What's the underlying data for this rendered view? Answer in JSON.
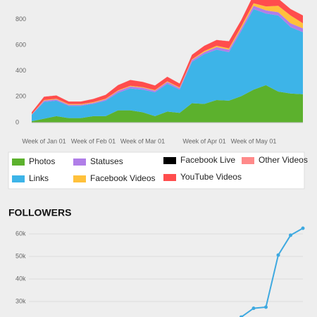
{
  "chart_data": [
    {
      "type": "stacked_area",
      "categories": [
        null,
        "Week of Jan 01",
        null,
        null,
        null,
        "Week of Feb 01",
        null,
        null,
        null,
        "Week of Mar 01",
        null,
        null,
        null,
        null,
        "Week of Apr 01",
        null,
        null,
        null,
        "Week of May 01",
        null,
        null,
        null,
        null
      ],
      "series": [
        {
          "name": "Photos",
          "color": "#5cb12d",
          "values": [
            10,
            30,
            50,
            35,
            35,
            50,
            50,
            95,
            95,
            80,
            50,
            85,
            75,
            150,
            145,
            175,
            170,
            205,
            255,
            290,
            240,
            225,
            220
          ]
        },
        {
          "name": "Links",
          "color": "#3db4e8",
          "values": [
            50,
            130,
            120,
            95,
            95,
            95,
            120,
            135,
            170,
            175,
            185,
            215,
            180,
            320,
            385,
            390,
            375,
            505,
            625,
            555,
            590,
            515,
            480
          ]
        },
        {
          "name": "Statuses",
          "color": "#b07ee8",
          "values": [
            3,
            10,
            10,
            8,
            8,
            8,
            10,
            15,
            15,
            15,
            12,
            15,
            12,
            15,
            15,
            20,
            20,
            20,
            25,
            25,
            25,
            30,
            30
          ]
        },
        {
          "name": "Facebook Videos",
          "color": "#ffc13b",
          "values": [
            2,
            5,
            5,
            5,
            5,
            5,
            5,
            5,
            5,
            5,
            5,
            5,
            5,
            5,
            10,
            10,
            10,
            15,
            20,
            30,
            50,
            60,
            40
          ]
        },
        {
          "name": "Facebook Live",
          "color": "#000000",
          "values": [
            0,
            0,
            0,
            0,
            0,
            0,
            0,
            0,
            0,
            0,
            0,
            0,
            0,
            0,
            0,
            0,
            0,
            0,
            0,
            0,
            0,
            0,
            0
          ]
        },
        {
          "name": "YouTube Videos",
          "color": "#ff4d4d",
          "values": [
            15,
            25,
            25,
            20,
            20,
            25,
            30,
            40,
            45,
            40,
            35,
            35,
            30,
            35,
            40,
            45,
            55,
            50,
            65,
            60,
            55,
            50,
            60
          ]
        },
        {
          "name": "Other Videos",
          "color": "#ff8a8a",
          "values": [
            1,
            1,
            1,
            1,
            1,
            1,
            1,
            1,
            1,
            1,
            1,
            1,
            1,
            1,
            1,
            1,
            1,
            1,
            1,
            1,
            1,
            1,
            1
          ]
        }
      ],
      "ylim": [
        0,
        950
      ],
      "yticks": [
        0,
        200,
        400,
        600,
        800
      ]
    },
    {
      "type": "line",
      "title": "FOLLOWERS",
      "series": [
        {
          "name": "Followers",
          "color": "#3ea9e0",
          "values": [
            null,
            null,
            null,
            null,
            null,
            null,
            null,
            null,
            null,
            null,
            null,
            null,
            null,
            null,
            null,
            null,
            null,
            23100,
            27000,
            27500,
            50600,
            59400,
            62500
          ]
        }
      ],
      "ylim": [
        20000,
        65000
      ],
      "yticks": [
        {
          "value": 30000,
          "label": "30k"
        },
        {
          "value": 40000,
          "label": "40k"
        },
        {
          "value": 50000,
          "label": "50k"
        },
        {
          "value": 60000,
          "label": "60k"
        }
      ],
      "grid": true
    }
  ]
}
